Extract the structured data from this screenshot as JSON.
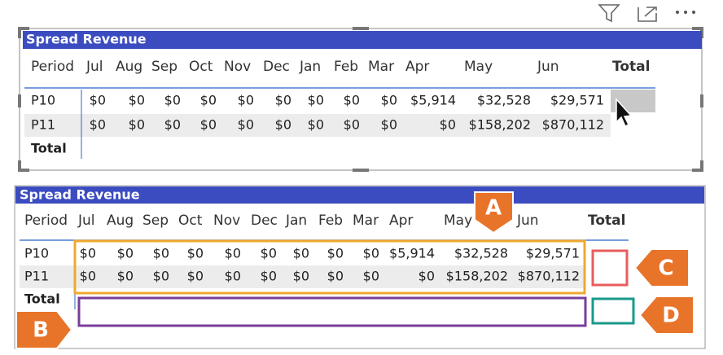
{
  "panels": [
    {
      "title": "Spread Revenue",
      "columns": [
        "Period",
        "Jul",
        "Aug",
        "Sep",
        "Oct",
        "Nov",
        "Dec",
        "Jan",
        "Feb",
        "Mar",
        "Apr",
        "May",
        "Jun",
        "Total"
      ],
      "rows": [
        {
          "label": "P10",
          "values": [
            "$0",
            "$0",
            "$0",
            "$0",
            "$0",
            "$0",
            "$0",
            "$0",
            "$0",
            "$5,914",
            "$32,528",
            "$29,571"
          ]
        },
        {
          "label": "P11",
          "values": [
            "$0",
            "$0",
            "$0",
            "$0",
            "$0",
            "$0",
            "$0",
            "$0",
            "$0",
            "$0",
            "$158,202",
            "$870,112"
          ]
        }
      ],
      "total_label": "Total"
    },
    {
      "title": "Spread Revenue",
      "columns": [
        "Period",
        "Jul",
        "Aug",
        "Sep",
        "Oct",
        "Nov",
        "Dec",
        "Jan",
        "Feb",
        "Mar",
        "Apr",
        "May",
        "Jun",
        "Total"
      ],
      "rows": [
        {
          "label": "P10",
          "values": [
            "$0",
            "$0",
            "$0",
            "$0",
            "$0",
            "$0",
            "$0",
            "$0",
            "$0",
            "$5,914",
            "$32,528",
            "$29,571"
          ]
        },
        {
          "label": "P11",
          "values": [
            "$0",
            "$0",
            "$0",
            "$0",
            "$0",
            "$0",
            "$0",
            "$0",
            "$0",
            "$0",
            "$158,202",
            "$870,112"
          ]
        }
      ],
      "total_label": "Total"
    }
  ],
  "callouts": [
    "A",
    "B",
    "C",
    "D"
  ]
}
